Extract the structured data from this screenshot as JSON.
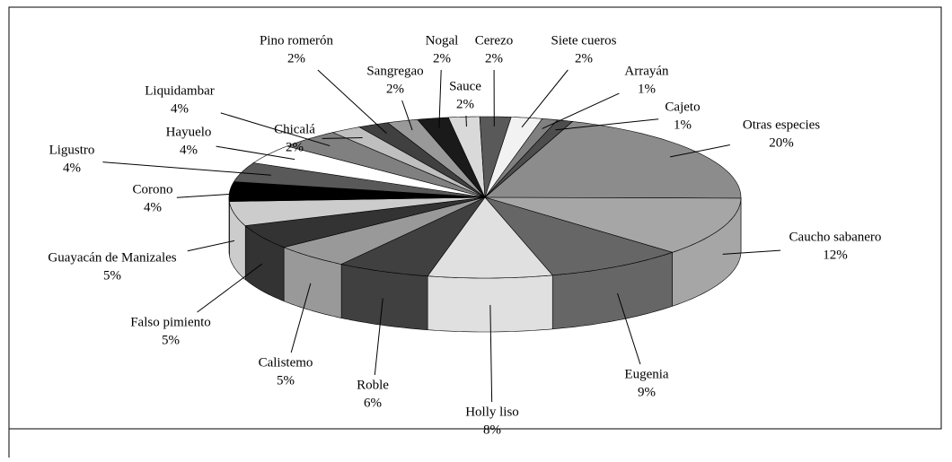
{
  "chart_data": {
    "type": "pie3d",
    "categories": [
      "Otras especies",
      "Caucho sabanero",
      "Eugenia",
      "Holly liso",
      "Roble",
      "Calistemo",
      "Falso pimiento",
      "Guayacán de Manizales",
      "Corono",
      "Ligustro",
      "Hayuelo",
      "Liquidambar",
      "Chicalá",
      "Pino romerón",
      "Sangregao",
      "Nogal",
      "Sauce",
      "Cerezo",
      "Siete cueros",
      "Arrayán",
      "Cajeto"
    ],
    "values": [
      20,
      12,
      9,
      8,
      6,
      5,
      5,
      5,
      4,
      4,
      4,
      4,
      2,
      2,
      2,
      2,
      2,
      2,
      2,
      1,
      1
    ],
    "value_labels": [
      "20%",
      "12%",
      "9%",
      "8%",
      "6%",
      "5%",
      "5%",
      "5%",
      "4%",
      "4%",
      "4%",
      "4%",
      "2%",
      "2%",
      "2%",
      "2%",
      "2%",
      "2%",
      "2%",
      "1%",
      "1%"
    ],
    "colors": [
      "#8c8c8c",
      "#a6a6a6",
      "#666666",
      "#e0e0e0",
      "#404040",
      "#999999",
      "#333333",
      "#cccccc",
      "#000000",
      "#595959",
      "#ffffff",
      "#808080",
      "#bfbfbf",
      "#404040",
      "#999999",
      "#1a1a1a",
      "#d9d9d9",
      "#595959",
      "#f2f2f2",
      "#808080",
      "#4d4d4d"
    ]
  }
}
